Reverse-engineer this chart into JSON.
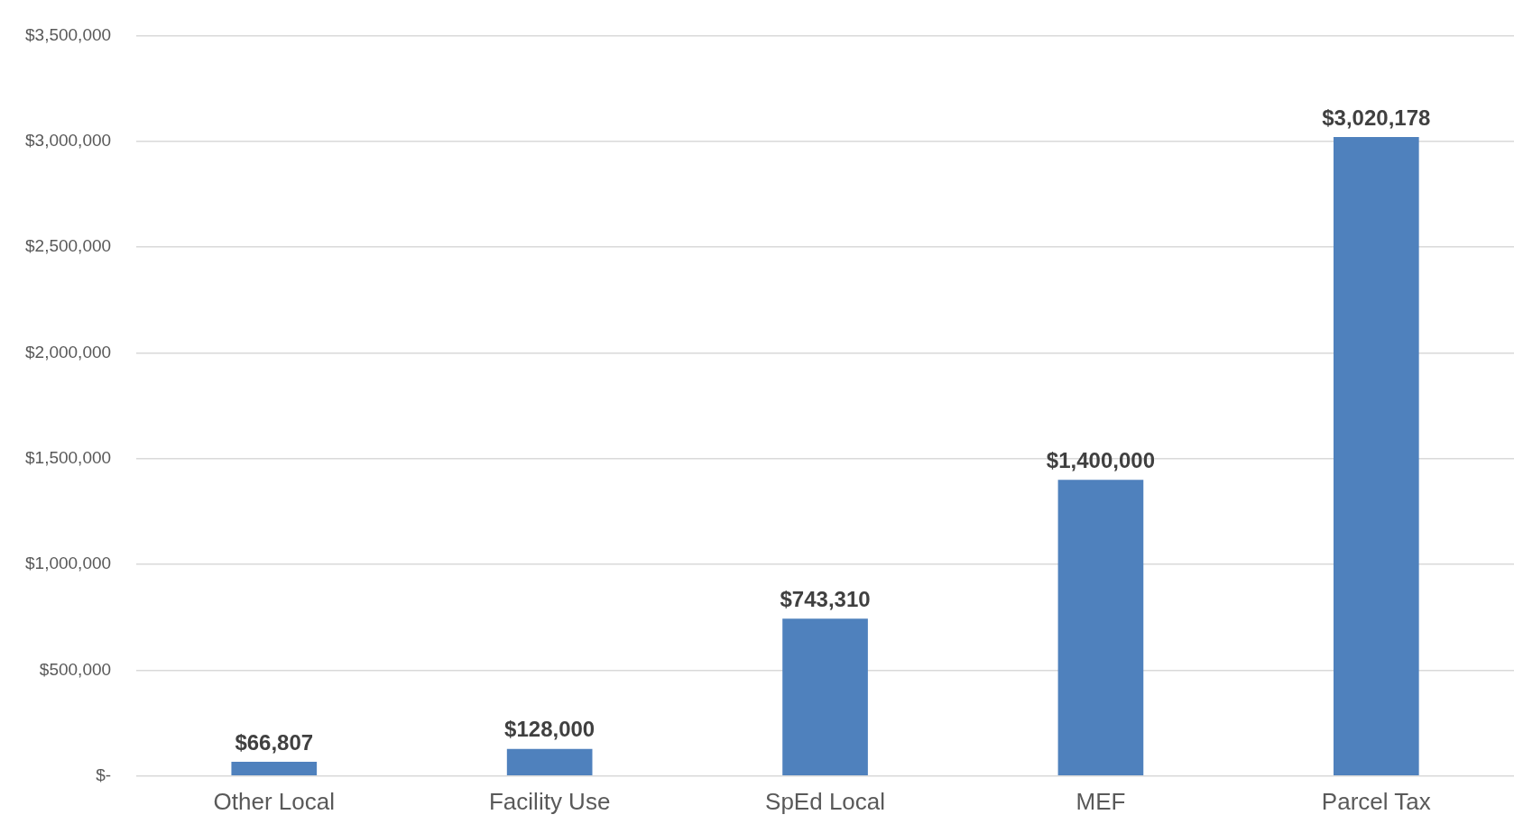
{
  "chart_data": {
    "type": "bar",
    "categories": [
      "Other Local",
      "Facility Use",
      "SpEd Local",
      "MEF",
      "Parcel Tax"
    ],
    "values": [
      66807,
      128000,
      743310,
      1400000,
      3020178
    ],
    "color": "#4f81bd",
    "value_labels": [
      "$66,807",
      "$128,000",
      "$743,310",
      "$1,400,000",
      "$3,020,178"
    ],
    "ylim": [
      0,
      3500000
    ],
    "yticks": [
      {
        "value": 0,
        "label": "$-"
      },
      {
        "value": 500000,
        "label": "$500,000"
      },
      {
        "value": 1000000,
        "label": "$1,000,000"
      },
      {
        "value": 1500000,
        "label": "$1,500,000"
      },
      {
        "value": 2000000,
        "label": "$2,000,000"
      },
      {
        "value": 2500000,
        "label": "$2,500,000"
      },
      {
        "value": 3000000,
        "label": "$3,000,000"
      },
      {
        "value": 3500000,
        "label": "$3,500,000"
      }
    ],
    "grid": "y"
  }
}
